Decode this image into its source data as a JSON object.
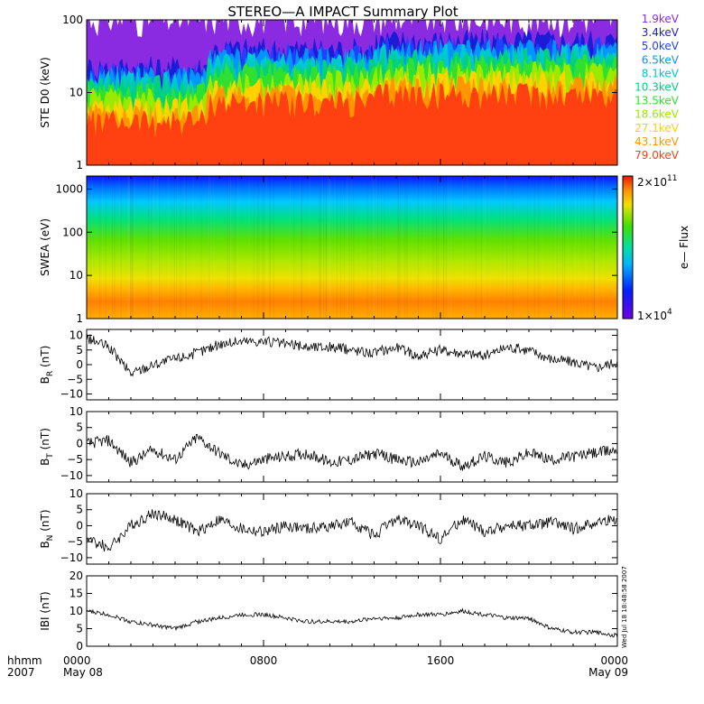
{
  "chart_data": {
    "type": "line",
    "title": "STEREO—A IMPACT Summary Plot",
    "time_axis": {
      "label_line1": "hhmm",
      "label_line2": "2007",
      "range_hours": [
        0,
        24
      ],
      "ticks": [
        {
          "hour": 0,
          "top": "0000",
          "bottom": "May 08"
        },
        {
          "hour": 8,
          "top": "0800",
          "bottom": ""
        },
        {
          "hour": 16,
          "top": "1600",
          "bottom": ""
        },
        {
          "hour": 24,
          "top": "0000",
          "bottom": "May 09"
        }
      ]
    },
    "stamp": "Wed Jul 18 18:48:58 2007",
    "panels": [
      {
        "id": "ste",
        "type": "line",
        "ylabel": "STE D0 (keV)",
        "yscale": "log",
        "ylim": [
          1,
          100
        ],
        "yticks": [
          "1",
          "10",
          "100"
        ],
        "series": [
          {
            "name": "1.9keV",
            "color": "#8a2be2",
            "base": 100
          },
          {
            "name": "3.4keV",
            "color": "#1c1cd6",
            "base": 22
          },
          {
            "name": "5.0keV",
            "color": "#2040ff",
            "base": 18
          },
          {
            "name": "6.5keV",
            "color": "#0096ff",
            "base": 16
          },
          {
            "name": "8.1keV",
            "color": "#00c8d2",
            "base": 14
          },
          {
            "name": "10.3keV",
            "color": "#00d080",
            "base": 12
          },
          {
            "name": "13.5keV",
            "color": "#30e030",
            "base": 10
          },
          {
            "name": "18.6keV",
            "color": "#9aea00",
            "base": 8
          },
          {
            "name": "27.1keV",
            "color": "#ffd200",
            "base": 6
          },
          {
            "name": "43.1keV",
            "color": "#ff9600",
            "base": 5
          },
          {
            "name": "79.0keV",
            "color": "#ff4010",
            "base": 4
          }
        ]
      },
      {
        "id": "swea",
        "type": "heatmap",
        "ylabel": "SWEA (eV)",
        "yscale": "log",
        "ylim": [
          1,
          2000
        ],
        "yticks": [
          "1",
          "10",
          "100",
          "1000"
        ],
        "colorbar": {
          "label": "e— Flux",
          "max_label": "2×10",
          "max_exp": "11",
          "min_label": "1×10",
          "min_exp": "4"
        }
      },
      {
        "id": "br",
        "type": "line",
        "ylabel": "B",
        "ysub": "R",
        "yunit": " (nT)",
        "ylim": [
          -12,
          12
        ],
        "yticks": [
          "10",
          "5",
          "0",
          "−5",
          "−10"
        ],
        "x_hours": [
          0,
          1,
          2,
          3,
          4,
          5,
          6,
          7,
          8,
          9,
          10,
          11,
          12,
          13,
          14,
          15,
          16,
          17,
          18,
          19,
          20,
          21,
          22,
          23,
          24
        ],
        "values": [
          9,
          6,
          -3,
          0,
          2,
          4,
          7,
          8,
          8,
          7,
          6,
          6,
          5,
          4,
          6,
          3,
          5,
          4,
          3,
          6,
          5,
          2,
          1,
          -1,
          1
        ]
      },
      {
        "id": "bt",
        "type": "line",
        "ylabel": "B",
        "ysub": "T",
        "yunit": " (nT)",
        "ylim": [
          -12,
          10
        ],
        "yticks": [
          "10",
          "5",
          "0",
          "−5",
          "−10"
        ],
        "x_hours": [
          0,
          1,
          2,
          3,
          4,
          5,
          6,
          7,
          8,
          9,
          10,
          11,
          12,
          13,
          14,
          15,
          16,
          17,
          18,
          19,
          20,
          21,
          22,
          23,
          24
        ],
        "values": [
          0,
          1,
          -6,
          -2,
          -5,
          2,
          -3,
          -7,
          -5,
          -4,
          -3,
          -6,
          -5,
          -3,
          -5,
          -6,
          -3,
          -7,
          -4,
          -6,
          -3,
          -5,
          -4,
          -3,
          -2
        ]
      },
      {
        "id": "bn",
        "type": "line",
        "ylabel": "B",
        "ysub": "N",
        "yunit": " (nT)",
        "ylim": [
          -12,
          10
        ],
        "yticks": [
          "10",
          "5",
          "0",
          "−5",
          "−10"
        ],
        "x_hours": [
          0,
          1,
          2,
          3,
          4,
          5,
          6,
          7,
          8,
          9,
          10,
          11,
          12,
          13,
          14,
          15,
          16,
          17,
          18,
          19,
          20,
          21,
          22,
          23,
          24
        ],
        "values": [
          -4,
          -7,
          0,
          4,
          2,
          -2,
          2,
          -1,
          -2,
          0,
          -1,
          0,
          1,
          -3,
          2,
          0,
          -4,
          2,
          -2,
          0,
          0,
          1,
          -1,
          1,
          2
        ]
      },
      {
        "id": "bmag",
        "type": "line",
        "ylabel": "IBI",
        "ysub": "",
        "yunit": " (nT)",
        "ylim": [
          0,
          20
        ],
        "yticks": [
          "20",
          "15",
          "10",
          "5",
          "0"
        ],
        "x_hours": [
          0,
          1,
          2,
          3,
          4,
          5,
          6,
          7,
          8,
          9,
          10,
          11,
          12,
          13,
          14,
          15,
          16,
          17,
          18,
          19,
          20,
          21,
          22,
          23,
          24
        ],
        "values": [
          10,
          9,
          7,
          6,
          5,
          7,
          8,
          9,
          9,
          8,
          7,
          7,
          7,
          8,
          8,
          9,
          9,
          10,
          9,
          8,
          8,
          5,
          4,
          4,
          3
        ]
      }
    ]
  }
}
